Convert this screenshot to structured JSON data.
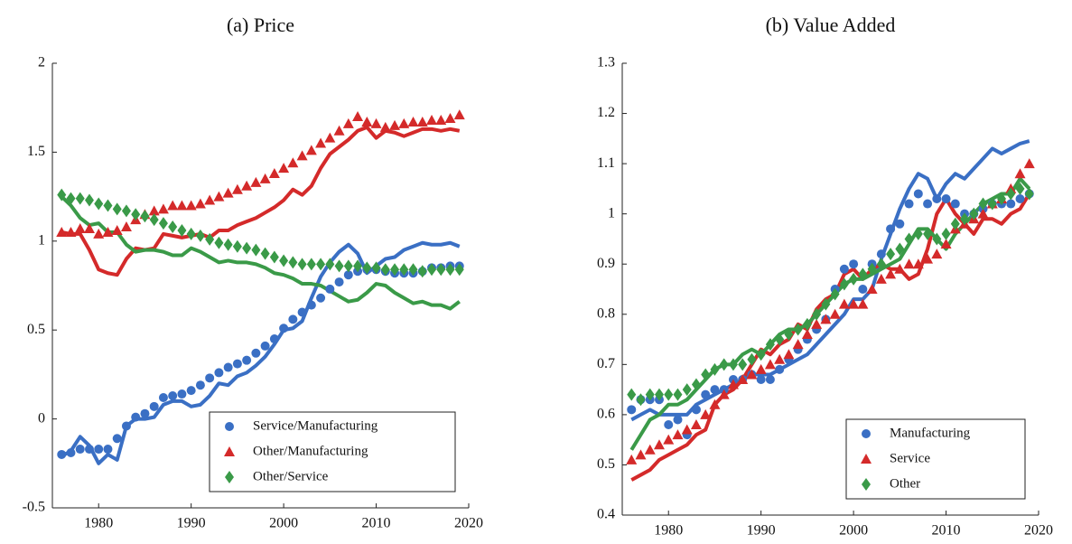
{
  "chart_data": [
    {
      "type": "line",
      "title": "(a) Price",
      "x": [
        1976,
        1977,
        1978,
        1979,
        1980,
        1981,
        1982,
        1983,
        1984,
        1985,
        1986,
        1987,
        1988,
        1989,
        1990,
        1991,
        1992,
        1993,
        1994,
        1995,
        1996,
        1997,
        1998,
        1999,
        2000,
        2001,
        2002,
        2003,
        2004,
        2005,
        2006,
        2007,
        2008,
        2009,
        2010,
        2011,
        2012,
        2013,
        2014,
        2015,
        2016,
        2017,
        2018,
        2019
      ],
      "xlim": [
        1975,
        2020
      ],
      "xticks": [
        1980,
        1990,
        2000,
        2010,
        2020
      ],
      "ylim": [
        -0.5,
        2
      ],
      "yticks": [
        -0.5,
        0,
        0.5,
        1,
        1.5,
        2
      ],
      "legend": "lower right",
      "series": [
        {
          "name": "Service/Manufacturing",
          "color": "#3a6fc4",
          "marker": "circle",
          "values": [
            -0.2,
            -0.19,
            -0.17,
            -0.17,
            -0.17,
            -0.17,
            -0.11,
            -0.04,
            0.01,
            0.03,
            0.07,
            0.12,
            0.13,
            0.14,
            0.16,
            0.19,
            0.23,
            0.26,
            0.29,
            0.31,
            0.33,
            0.37,
            0.41,
            0.45,
            0.51,
            0.56,
            0.6,
            0.64,
            0.68,
            0.73,
            0.77,
            0.81,
            0.83,
            0.84,
            0.84,
            0.83,
            0.82,
            0.82,
            0.82,
            0.83,
            0.85,
            0.85,
            0.86,
            0.86
          ]
        },
        {
          "name": "Other/Manufacturing",
          "color": "#d42a2a",
          "marker": "triangle",
          "values": [
            1.05,
            1.05,
            1.07,
            1.07,
            1.04,
            1.05,
            1.06,
            1.08,
            1.12,
            1.15,
            1.17,
            1.18,
            1.2,
            1.2,
            1.2,
            1.21,
            1.23,
            1.25,
            1.27,
            1.29,
            1.31,
            1.33,
            1.35,
            1.38,
            1.41,
            1.44,
            1.48,
            1.51,
            1.55,
            1.58,
            1.62,
            1.66,
            1.7,
            1.67,
            1.66,
            1.64,
            1.65,
            1.66,
            1.67,
            1.67,
            1.68,
            1.68,
            1.69,
            1.71
          ]
        },
        {
          "name": "Other/Service",
          "color": "#3a9a48",
          "marker": "diamond",
          "values": [
            1.26,
            1.24,
            1.24,
            1.23,
            1.21,
            1.2,
            1.18,
            1.17,
            1.15,
            1.14,
            1.12,
            1.1,
            1.08,
            1.06,
            1.04,
            1.03,
            1.01,
            0.99,
            0.98,
            0.97,
            0.96,
            0.95,
            0.93,
            0.91,
            0.89,
            0.88,
            0.87,
            0.87,
            0.87,
            0.87,
            0.86,
            0.86,
            0.86,
            0.85,
            0.85,
            0.84,
            0.84,
            0.84,
            0.84,
            0.83,
            0.84,
            0.84,
            0.84,
            0.84
          ]
        },
        {
          "color": "#3a6fc4",
          "values": [
            -0.21,
            -0.18,
            -0.1,
            -0.15,
            -0.25,
            -0.2,
            -0.23,
            -0.04,
            0.0,
            0.0,
            0.01,
            0.08,
            0.1,
            0.1,
            0.07,
            0.08,
            0.13,
            0.2,
            0.19,
            0.24,
            0.26,
            0.3,
            0.35,
            0.42,
            0.5,
            0.51,
            0.55,
            0.68,
            0.8,
            0.88,
            0.94,
            0.98,
            0.93,
            0.82,
            0.86,
            0.9,
            0.91,
            0.95,
            0.97,
            0.99,
            0.98,
            0.98,
            0.99,
            0.97
          ]
        },
        {
          "color": "#d42a2a",
          "values": [
            1.05,
            1.04,
            1.04,
            0.95,
            0.84,
            0.82,
            0.81,
            0.9,
            0.96,
            0.95,
            0.96,
            1.04,
            1.03,
            1.02,
            1.03,
            1.04,
            1.02,
            1.06,
            1.06,
            1.09,
            1.11,
            1.13,
            1.16,
            1.19,
            1.23,
            1.29,
            1.26,
            1.31,
            1.41,
            1.49,
            1.53,
            1.57,
            1.62,
            1.64,
            1.58,
            1.62,
            1.61,
            1.59,
            1.61,
            1.63,
            1.63,
            1.62,
            1.63,
            1.62
          ]
        },
        {
          "color": "#3a9a48",
          "values": [
            1.25,
            1.2,
            1.13,
            1.09,
            1.1,
            1.05,
            1.05,
            0.98,
            0.94,
            0.95,
            0.95,
            0.94,
            0.92,
            0.92,
            0.96,
            0.94,
            0.91,
            0.88,
            0.89,
            0.88,
            0.88,
            0.87,
            0.85,
            0.82,
            0.81,
            0.79,
            0.76,
            0.76,
            0.75,
            0.72,
            0.69,
            0.66,
            0.67,
            0.71,
            0.76,
            0.75,
            0.71,
            0.68,
            0.65,
            0.66,
            0.64,
            0.64,
            0.62,
            0.66
          ]
        }
      ]
    },
    {
      "type": "line",
      "title": "(b) Value Added",
      "x": [
        1976,
        1977,
        1978,
        1979,
        1980,
        1981,
        1982,
        1983,
        1984,
        1985,
        1986,
        1987,
        1988,
        1989,
        1990,
        1991,
        1992,
        1993,
        1994,
        1995,
        1996,
        1997,
        1998,
        1999,
        2000,
        2001,
        2002,
        2003,
        2004,
        2005,
        2006,
        2007,
        2008,
        2009,
        2010,
        2011,
        2012,
        2013,
        2014,
        2015,
        2016,
        2017,
        2018,
        2019
      ],
      "xlim": [
        1975,
        2020
      ],
      "xticks": [
        1980,
        1990,
        2000,
        2010,
        2020
      ],
      "ylim": [
        0.4,
        1.3
      ],
      "yticks": [
        0.4,
        0.5,
        0.6,
        0.7,
        0.8,
        0.9,
        1,
        1.1,
        1.2,
        1.3
      ],
      "legend": "lower right",
      "series": [
        {
          "name": "Manufacturing",
          "color": "#3a6fc4",
          "marker": "circle",
          "values": [
            0.61,
            0.63,
            0.63,
            0.63,
            0.58,
            0.59,
            0.56,
            0.61,
            0.64,
            0.65,
            0.65,
            0.67,
            0.67,
            0.68,
            0.67,
            0.67,
            0.69,
            0.71,
            0.73,
            0.75,
            0.77,
            0.79,
            0.85,
            0.89,
            0.9,
            0.85,
            0.9,
            0.92,
            0.97,
            0.98,
            1.02,
            1.04,
            1.02,
            1.03,
            1.03,
            1.02,
            1.0,
            1.0,
            1.01,
            1.02,
            1.02,
            1.02,
            1.03,
            1.04
          ]
        },
        {
          "name": "Service",
          "color": "#d42a2a",
          "marker": "triangle",
          "values": [
            0.51,
            0.52,
            0.53,
            0.54,
            0.55,
            0.56,
            0.57,
            0.58,
            0.6,
            0.62,
            0.64,
            0.66,
            0.67,
            0.68,
            0.69,
            0.7,
            0.71,
            0.72,
            0.74,
            0.76,
            0.78,
            0.79,
            0.8,
            0.82,
            0.82,
            0.82,
            0.85,
            0.87,
            0.88,
            0.89,
            0.9,
            0.9,
            0.91,
            0.92,
            0.94,
            0.97,
            0.98,
            0.99,
            1.0,
            1.02,
            1.03,
            1.05,
            1.08,
            1.1
          ]
        },
        {
          "name": "Other",
          "color": "#3a9a48",
          "marker": "diamond",
          "values": [
            0.64,
            0.63,
            0.64,
            0.64,
            0.64,
            0.64,
            0.65,
            0.66,
            0.68,
            0.69,
            0.7,
            0.7,
            0.7,
            0.71,
            0.72,
            0.74,
            0.75,
            0.76,
            0.77,
            0.78,
            0.8,
            0.82,
            0.84,
            0.86,
            0.87,
            0.88,
            0.89,
            0.9,
            0.92,
            0.93,
            0.95,
            0.96,
            0.96,
            0.95,
            0.96,
            0.98,
            0.99,
            1.0,
            1.02,
            1.02,
            1.03,
            1.04,
            1.05,
            1.04
          ]
        },
        {
          "color": "#3a6fc4",
          "values": [
            0.59,
            0.6,
            0.61,
            0.6,
            0.6,
            0.6,
            0.6,
            0.62,
            0.63,
            0.64,
            0.65,
            0.66,
            0.67,
            0.68,
            0.68,
            0.68,
            0.69,
            0.7,
            0.71,
            0.72,
            0.74,
            0.76,
            0.78,
            0.8,
            0.83,
            0.83,
            0.85,
            0.91,
            0.96,
            1.01,
            1.05,
            1.08,
            1.07,
            1.03,
            1.06,
            1.08,
            1.07,
            1.09,
            1.11,
            1.13,
            1.12,
            1.13,
            1.14,
            1.145
          ]
        },
        {
          "color": "#d42a2a",
          "values": [
            0.47,
            0.48,
            0.49,
            0.51,
            0.52,
            0.53,
            0.54,
            0.56,
            0.57,
            0.62,
            0.64,
            0.65,
            0.67,
            0.7,
            0.73,
            0.72,
            0.74,
            0.75,
            0.78,
            0.77,
            0.81,
            0.83,
            0.84,
            0.88,
            0.89,
            0.87,
            0.89,
            0.9,
            0.89,
            0.89,
            0.87,
            0.88,
            0.93,
            1.0,
            1.03,
            1.0,
            0.98,
            0.96,
            0.99,
            0.99,
            0.98,
            1.0,
            1.01,
            1.04
          ]
        },
        {
          "color": "#3a9a48",
          "values": [
            0.53,
            0.56,
            0.59,
            0.6,
            0.62,
            0.62,
            0.63,
            0.65,
            0.67,
            0.69,
            0.7,
            0.7,
            0.72,
            0.73,
            0.72,
            0.74,
            0.76,
            0.77,
            0.77,
            0.78,
            0.8,
            0.82,
            0.84,
            0.86,
            0.87,
            0.87,
            0.88,
            0.89,
            0.9,
            0.91,
            0.94,
            0.97,
            0.97,
            0.95,
            0.93,
            0.96,
            0.98,
            1.0,
            1.02,
            1.03,
            1.04,
            1.04,
            1.07,
            1.05
          ]
        }
      ]
    }
  ]
}
